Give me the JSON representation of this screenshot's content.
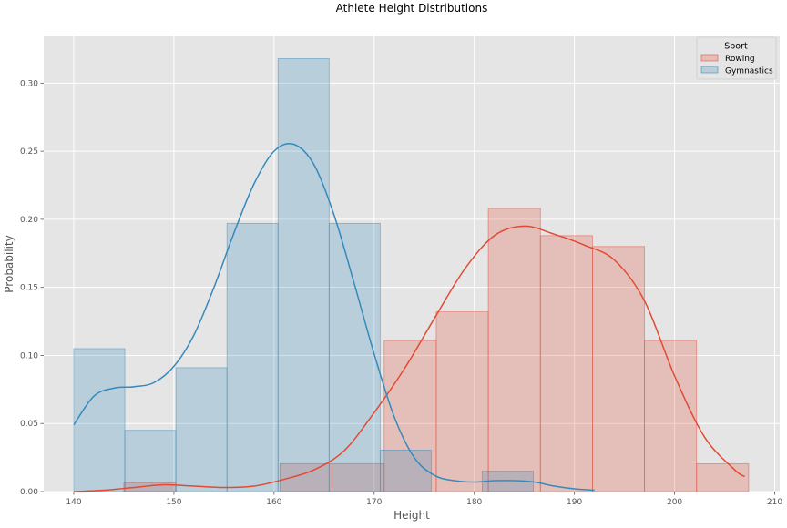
{
  "chart_data": {
    "type": "histogram",
    "title": "Athlete Height Distributions",
    "xlabel": "Height",
    "ylabel": "Probability",
    "xlim": [
      137,
      210.5
    ],
    "ylim": [
      0,
      0.335
    ],
    "xticks": [
      140,
      150,
      160,
      170,
      180,
      190,
      200,
      210
    ],
    "yticks": [
      0.0,
      0.05,
      0.1,
      0.15,
      0.2,
      0.25,
      0.3
    ],
    "ytick_labels": [
      "0.00",
      "0.05",
      "0.10",
      "0.15",
      "0.20",
      "0.25",
      "0.30"
    ],
    "grid": true,
    "legend": {
      "title": "Sport",
      "placement": "top-right"
    },
    "series": [
      {
        "name": "Rowing",
        "color": "#E24A33",
        "bin_edges": [
          145.0,
          150.2,
          155.4,
          160.6,
          165.8,
          171.0,
          176.2,
          181.4,
          186.6,
          191.8,
          197.0,
          202.2,
          207.4
        ],
        "values": [
          0.0065,
          0.0,
          0.0,
          0.0205,
          0.0205,
          0.111,
          0.132,
          0.208,
          0.188,
          0.18,
          0.111,
          0.0205
        ],
        "kde": {
          "x": [
            140,
            143,
            146,
            149,
            152,
            155,
            158,
            161,
            164,
            167,
            170,
            173,
            176,
            179,
            182,
            185,
            188,
            191,
            194,
            197,
            200,
            203,
            206,
            207
          ],
          "y": [
            0.0,
            0.001,
            0.003,
            0.005,
            0.004,
            0.003,
            0.004,
            0.009,
            0.016,
            0.03,
            0.058,
            0.09,
            0.127,
            0.163,
            0.188,
            0.195,
            0.189,
            0.181,
            0.17,
            0.14,
            0.085,
            0.04,
            0.016,
            0.011
          ]
        }
      },
      {
        "name": "Gymnastics",
        "color": "#348ABD",
        "bin_edges": [
          140.0,
          145.1,
          150.2,
          155.3,
          160.4,
          165.5,
          170.6,
          175.7,
          180.8,
          185.9
        ],
        "values": [
          0.105,
          0.045,
          0.091,
          0.197,
          0.318,
          0.197,
          0.0305,
          0.0,
          0.015
        ],
        "kde": {
          "x": [
            140,
            142,
            144,
            146,
            148,
            150,
            152,
            154,
            156,
            158,
            160,
            162,
            164,
            166,
            168,
            170,
            172,
            174,
            176,
            178,
            180,
            182,
            184,
            186,
            188,
            190,
            192
          ],
          "y": [
            0.049,
            0.07,
            0.076,
            0.077,
            0.08,
            0.092,
            0.115,
            0.15,
            0.19,
            0.226,
            0.25,
            0.255,
            0.24,
            0.203,
            0.153,
            0.101,
            0.055,
            0.025,
            0.012,
            0.008,
            0.007,
            0.008,
            0.008,
            0.007,
            0.004,
            0.002,
            0.001
          ]
        }
      }
    ]
  }
}
